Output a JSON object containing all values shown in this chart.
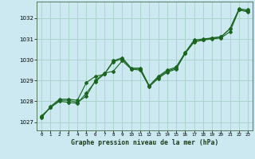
{
  "xlabel": "Graphe pression niveau de la mer (hPa)",
  "bg_color": "#cce8f0",
  "grid_color": "#aad4cc",
  "line_color": "#1a6620",
  "ylim": [
    1026.6,
    1032.8
  ],
  "xlim": [
    -0.5,
    23.5
  ],
  "yticks": [
    1027,
    1028,
    1029,
    1030,
    1031,
    1032
  ],
  "xticks": [
    0,
    1,
    2,
    3,
    4,
    5,
    6,
    7,
    8,
    9,
    10,
    11,
    12,
    13,
    14,
    15,
    16,
    17,
    18,
    19,
    20,
    21,
    22,
    23
  ],
  "series1_x": [
    0,
    1,
    2,
    3,
    4,
    5,
    6,
    7,
    8,
    9,
    10,
    11,
    12,
    13,
    14,
    15,
    16,
    17,
    18,
    19,
    20,
    21,
    22,
    23
  ],
  "series1_y": [
    1027.3,
    1027.7,
    1028.05,
    1028.05,
    1027.95,
    1028.25,
    1029.0,
    1029.35,
    1029.45,
    1029.95,
    1029.55,
    1029.5,
    1028.7,
    1029.1,
    1029.4,
    1029.55,
    1030.3,
    1030.85,
    1030.95,
    1031.05,
    1031.1,
    1031.5,
    1032.4,
    1032.3
  ],
  "series2_x": [
    0,
    1,
    2,
    3,
    4,
    5,
    6,
    7,
    8,
    9,
    10,
    11,
    12,
    13,
    14,
    15,
    16,
    17,
    18,
    19,
    20,
    21,
    22,
    23
  ],
  "series2_y": [
    1027.2,
    1027.75,
    1028.1,
    1028.1,
    1028.05,
    1028.9,
    1029.2,
    1029.3,
    1029.95,
    1030.1,
    1029.6,
    1029.6,
    1028.75,
    1029.2,
    1029.5,
    1029.65,
    1030.35,
    1030.95,
    1031.0,
    1031.05,
    1031.1,
    1031.5,
    1032.45,
    1032.4
  ],
  "series3_x": [
    0,
    1,
    2,
    3,
    4,
    5,
    6,
    7,
    8,
    9,
    10,
    11,
    12,
    13,
    14,
    15,
    16,
    17,
    18,
    19,
    20,
    21,
    22,
    23
  ],
  "series3_y": [
    1027.25,
    1027.7,
    1028.0,
    1027.95,
    1027.9,
    1028.4,
    1028.95,
    1029.3,
    1029.9,
    1030.05,
    1029.55,
    1029.55,
    1028.75,
    1029.15,
    1029.45,
    1029.6,
    1030.3,
    1030.9,
    1030.95,
    1031.0,
    1031.05,
    1031.35,
    1032.4,
    1032.35
  ]
}
